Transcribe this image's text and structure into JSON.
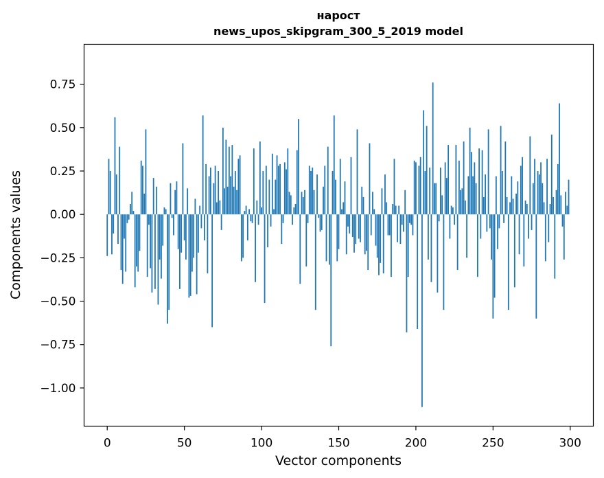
{
  "chart_data": {
    "type": "bar",
    "title": "нарост",
    "subtitle": "news_upos_skipgram_300_5_2019 model",
    "xlabel": "Vector components",
    "ylabel": "Components values",
    "xlim": [
      -15,
      315
    ],
    "ylim": [
      -1.22,
      0.98
    ],
    "xticks": [
      0,
      50,
      100,
      150,
      200,
      250,
      300
    ],
    "xtick_labels": [
      "0",
      "50",
      "100",
      "150",
      "200",
      "250",
      "300"
    ],
    "yticks": [
      0.75,
      0.5,
      0.25,
      0.0,
      -0.25,
      -0.5,
      -0.75,
      -1.0
    ],
    "ytick_labels": [
      "0.75",
      "0.50",
      "0.25",
      "0.00",
      "−0.25",
      "−0.50",
      "−0.75",
      "−1.00"
    ],
    "bar_color": "#1f77b4",
    "grid": false,
    "series": [
      {
        "name": "нарост",
        "values": [
          -0.24,
          0.32,
          0.25,
          -0.23,
          -0.11,
          0.56,
          0.23,
          -0.17,
          0.39,
          -0.32,
          -0.4,
          -0.14,
          -0.33,
          -0.05,
          -0.03,
          0.06,
          0.13,
          0.02,
          -0.42,
          -0.3,
          -0.33,
          -0.21,
          0.31,
          0.28,
          0.12,
          0.49,
          -0.36,
          -0.06,
          -0.31,
          -0.45,
          0.21,
          -0.43,
          0.16,
          -0.52,
          -0.26,
          -0.37,
          -0.18,
          0.04,
          0.03,
          -0.63,
          -0.55,
          0.18,
          -0.02,
          -0.12,
          0.14,
          0.19,
          -0.2,
          -0.43,
          -0.22,
          0.41,
          -0.15,
          -0.26,
          0.15,
          -0.48,
          -0.47,
          -0.33,
          -0.25,
          0.09,
          -0.46,
          -0.22,
          0.05,
          -0.08,
          0.57,
          -0.15,
          0.29,
          -0.34,
          0.22,
          0.27,
          -0.65,
          0.18,
          0.28,
          0.07,
          0.25,
          0.08,
          -0.09,
          0.5,
          0.15,
          0.43,
          0.16,
          0.39,
          0.22,
          0.4,
          0.16,
          0.25,
          0.14,
          0.32,
          0.34,
          -0.27,
          -0.25,
          0.02,
          0.05,
          -0.15,
          0.03,
          -0.04,
          -0.05,
          0.38,
          -0.39,
          0.08,
          -0.06,
          0.42,
          0.04,
          0.25,
          -0.51,
          0.28,
          -0.19,
          0.2,
          -0.07,
          0.35,
          0.03,
          0.2,
          0.34,
          0.28,
          0.29,
          -0.17,
          -0.05,
          0.3,
          0.26,
          0.38,
          0.13,
          0.11,
          -0.06,
          0.04,
          0.06,
          0.37,
          0.55,
          -0.4,
          0.13,
          0.1,
          0.14,
          -0.3,
          -0.05,
          0.28,
          0.25,
          0.27,
          0.14,
          -0.55,
          0.23,
          -0.02,
          -0.1,
          -0.09,
          0.16,
          0.28,
          -0.27,
          0.39,
          -0.29,
          -0.76,
          0.25,
          0.57,
          0.2,
          -0.27,
          -0.2,
          0.32,
          0.03,
          0.07,
          0.19,
          -0.23,
          -0.07,
          -0.11,
          0.33,
          -0.13,
          -0.22,
          -0.17,
          0.49,
          -0.14,
          -0.16,
          0.16,
          0.1,
          -0.23,
          -0.21,
          -0.32,
          0.41,
          -0.12,
          0.13,
          0.03,
          -0.18,
          -0.25,
          -0.35,
          -0.28,
          0.15,
          -0.34,
          0.23,
          0.07,
          -0.12,
          -0.12,
          -0.36,
          0.06,
          0.32,
          0.05,
          -0.16,
          0.05,
          -0.17,
          -0.06,
          -0.1,
          0.14,
          -0.68,
          -0.36,
          -0.05,
          -0.06,
          -0.12,
          0.31,
          0.3,
          -0.66,
          0.28,
          0.33,
          -1.11,
          0.6,
          0.25,
          0.51,
          -0.26,
          0.27,
          -0.39,
          0.76,
          0.18,
          0.18,
          -0.45,
          -0.04,
          0.27,
          0.11,
          -0.55,
          0.3,
          0.21,
          0.4,
          -0.14,
          0.05,
          0.04,
          -0.06,
          0.4,
          -0.32,
          0.31,
          0.14,
          0.15,
          0.42,
          0.08,
          -0.25,
          0.22,
          0.5,
          0.36,
          0.22,
          0.3,
          0.18,
          -0.36,
          0.38,
          -0.14,
          0.37,
          0.1,
          0.23,
          -0.1,
          0.49,
          -0.08,
          -0.26,
          -0.6,
          -0.48,
          0.22,
          -0.2,
          -0.08,
          0.51,
          0.25,
          -0.05,
          0.42,
          0.1,
          -0.55,
          0.07,
          0.22,
          0.09,
          -0.42,
          0.12,
          0.19,
          -0.23,
          0.28,
          0.33,
          -0.3,
          0.08,
          0.06,
          -0.14,
          0.45,
          -0.09,
          0.18,
          0.32,
          -0.6,
          0.25,
          0.23,
          0.3,
          0.18,
          0.07,
          -0.27,
          0.32,
          -0.16,
          0.06,
          0.46,
          0.1,
          -0.37,
          0.14,
          0.29,
          0.64,
          0.11,
          -0.07,
          -0.26,
          0.13,
          0.05,
          0.2
        ]
      }
    ]
  }
}
